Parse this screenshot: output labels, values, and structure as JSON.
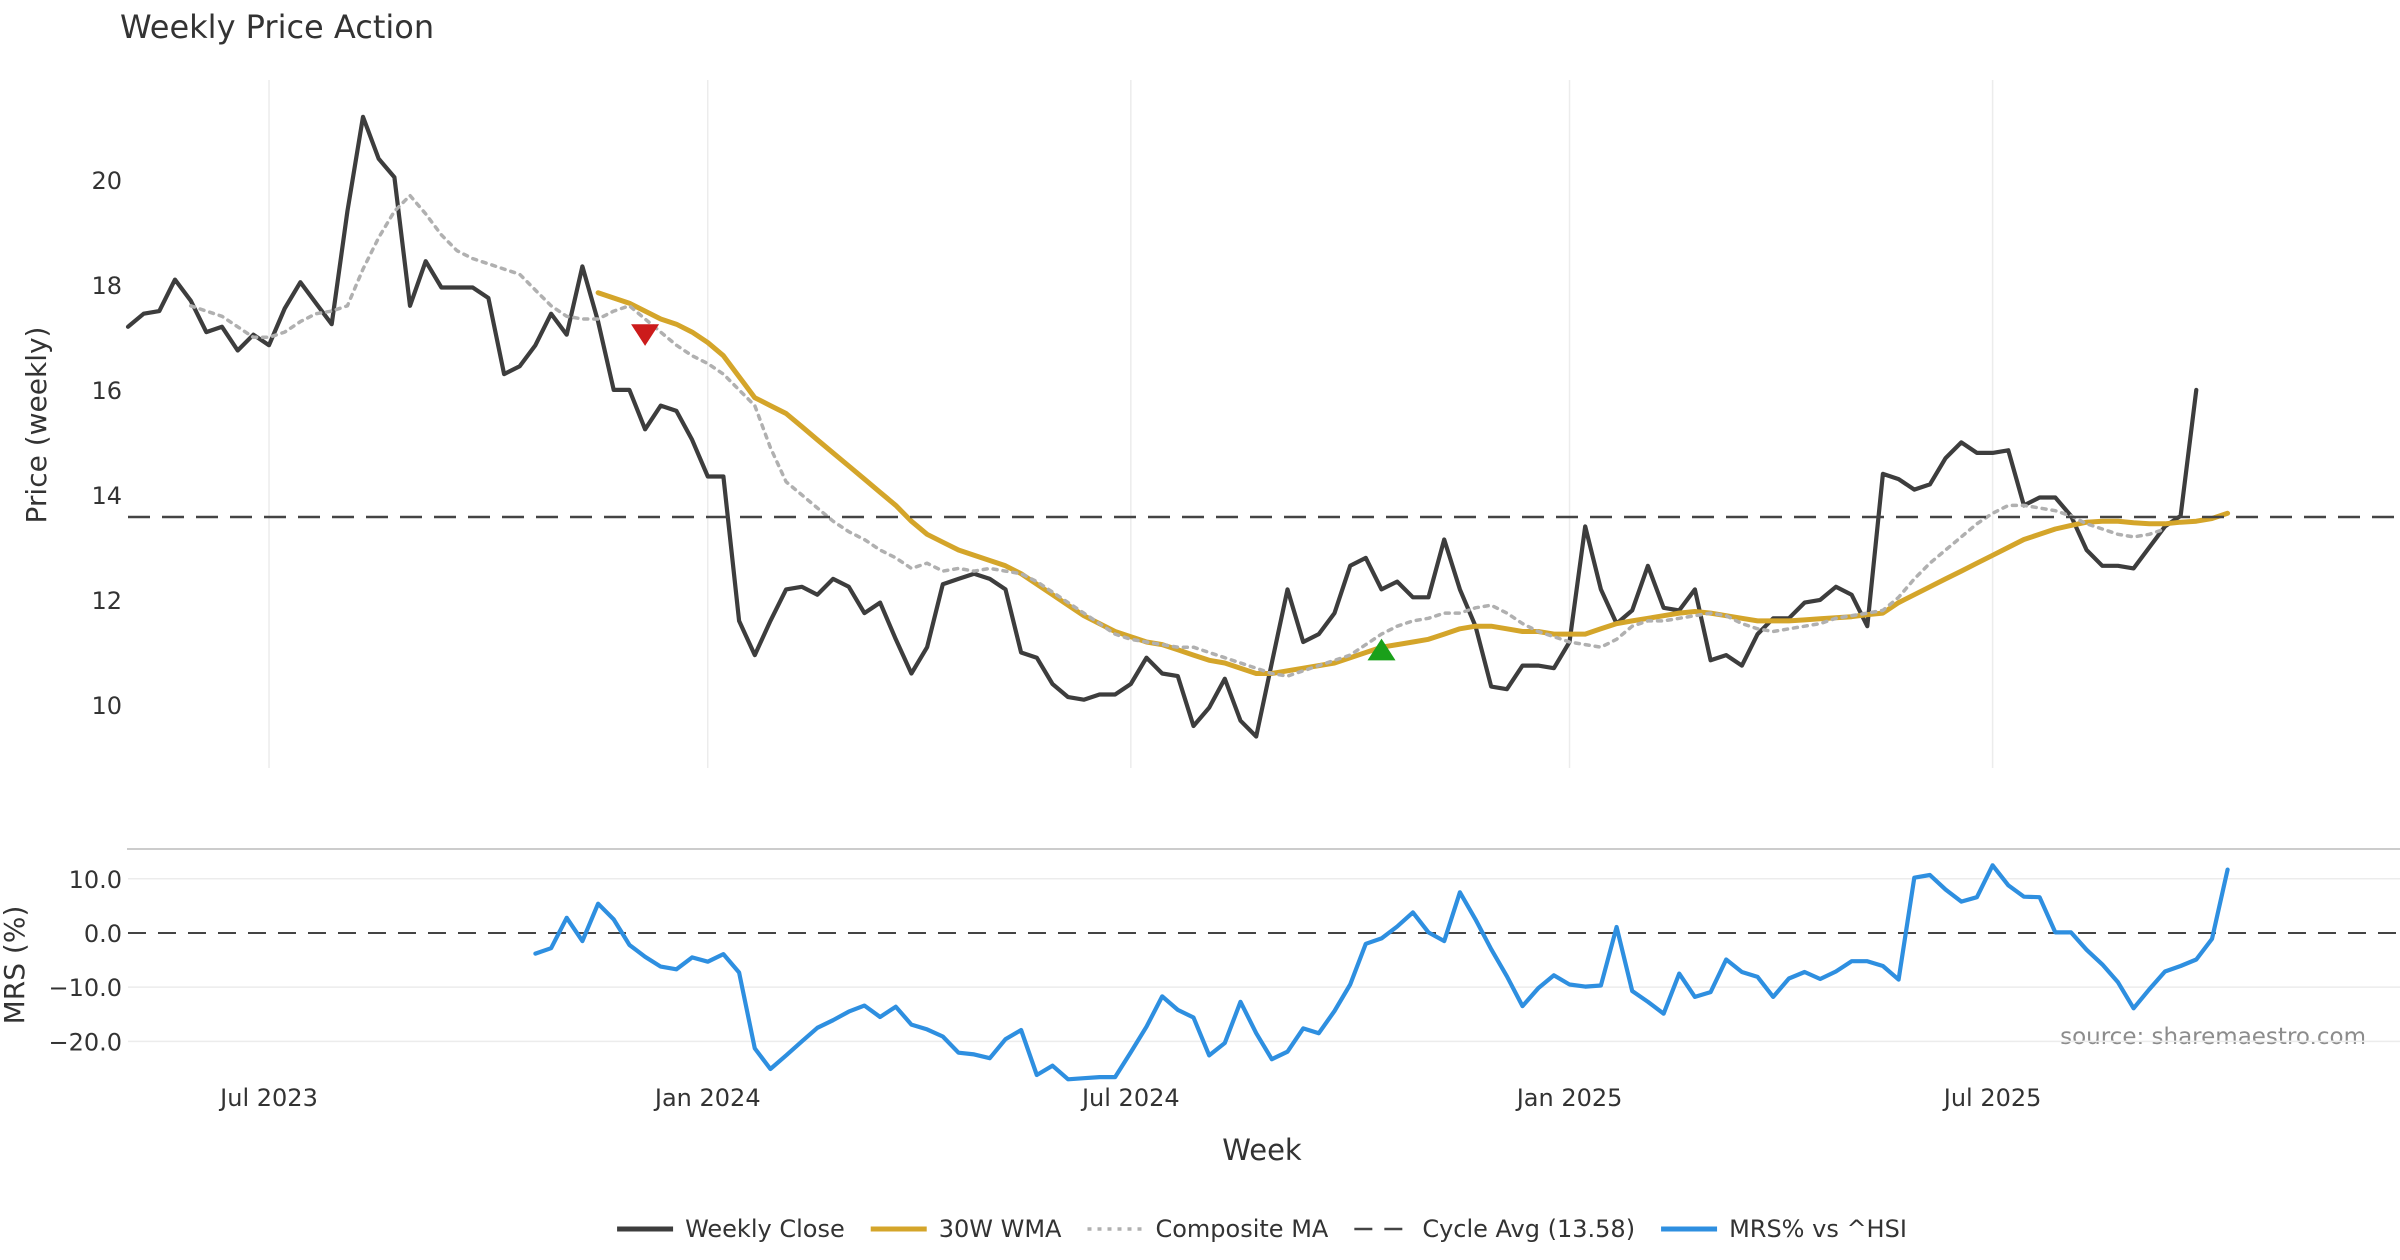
{
  "chart_data": [
    {
      "type": "line",
      "panel": "price",
      "title": "Weekly Price Action",
      "ylabel": "Price (weekly)",
      "ylim": [
        8.8,
        21.9
      ],
      "yticks": [
        10,
        12,
        14,
        16,
        18,
        20
      ],
      "ytick_labels": [
        "10",
        "12",
        "14",
        "16",
        "18",
        "20"
      ],
      "week_range": [
        0,
        145
      ],
      "grid_weeks": [
        9,
        37,
        64,
        92,
        119
      ],
      "series": [
        {
          "name": "Weekly Close",
          "color": "#3d3d3d",
          "start_week": 0,
          "values": [
            17.2,
            17.45,
            17.5,
            18.1,
            17.7,
            17.1,
            17.2,
            16.75,
            17.05,
            16.85,
            17.55,
            18.05,
            17.65,
            17.25,
            19.4,
            21.2,
            20.4,
            20.05,
            17.6,
            18.45,
            17.95,
            17.95,
            17.95,
            17.75,
            16.3,
            16.45,
            16.85,
            17.45,
            17.05,
            18.35,
            17.3,
            16.0,
            16.0,
            15.25,
            15.7,
            15.6,
            15.05,
            14.35,
            14.35,
            11.6,
            10.95,
            11.6,
            12.2,
            12.25,
            12.1,
            12.4,
            12.25,
            11.75,
            11.95,
            11.25,
            10.6,
            11.1,
            12.3,
            12.4,
            12.5,
            12.4,
            12.2,
            11.0,
            10.9,
            10.4,
            10.15,
            10.1,
            10.2,
            10.2,
            10.4,
            10.9,
            10.6,
            10.55,
            9.6,
            9.95,
            10.5,
            9.7,
            9.4,
            10.8,
            12.2,
            11.2,
            11.35,
            11.75,
            12.65,
            12.8,
            12.2,
            12.35,
            12.05,
            12.05,
            13.15,
            12.2,
            11.5,
            10.35,
            10.3,
            10.75,
            10.75,
            10.7,
            11.2,
            13.4,
            12.2,
            11.55,
            11.8,
            12.65,
            11.85,
            11.8,
            12.2,
            10.85,
            10.95,
            10.75,
            11.35,
            11.65,
            11.65,
            11.95,
            12.0,
            12.25,
            12.1,
            11.5,
            14.4,
            14.3,
            14.1,
            14.2,
            14.7,
            15.0,
            14.8,
            14.8,
            14.85,
            13.8,
            13.95,
            13.95,
            13.6,
            12.95,
            12.65,
            12.65,
            12.6,
            13.0,
            13.4,
            13.6,
            16.0
          ]
        },
        {
          "name": "30W WMA",
          "color": "#d4a52a",
          "start_week": 30,
          "values": [
            17.85,
            17.75,
            17.65,
            17.5,
            17.35,
            17.25,
            17.1,
            16.9,
            16.65,
            16.25,
            15.85,
            15.7,
            15.55,
            15.3,
            15.05,
            14.8,
            14.55,
            14.3,
            14.05,
            13.8,
            13.5,
            13.25,
            13.1,
            12.95,
            12.85,
            12.75,
            12.65,
            12.5,
            12.3,
            12.1,
            11.9,
            11.7,
            11.55,
            11.4,
            11.3,
            11.2,
            11.15,
            11.05,
            10.95,
            10.85,
            10.8,
            10.7,
            10.6,
            10.6,
            10.65,
            10.7,
            10.75,
            10.8,
            10.9,
            11.0,
            11.1,
            11.15,
            11.2,
            11.25,
            11.35,
            11.45,
            11.5,
            11.5,
            11.45,
            11.4,
            11.4,
            11.35,
            11.35,
            11.35,
            11.45,
            11.55,
            11.6,
            11.65,
            11.7,
            11.75,
            11.78,
            11.75,
            11.7,
            11.65,
            11.6,
            11.6,
            11.6,
            11.62,
            11.64,
            11.66,
            11.68,
            11.72,
            11.75,
            11.95,
            12.1,
            12.25,
            12.4,
            12.55,
            12.7,
            12.85,
            13.0,
            13.15,
            13.25,
            13.35,
            13.42,
            13.48,
            13.5,
            13.5,
            13.47,
            13.45,
            13.45,
            13.48,
            13.5,
            13.55,
            13.65
          ]
        },
        {
          "name": "Composite MA",
          "color": "#b0b0b0",
          "start_week": 4,
          "values": [
            17.6,
            17.5,
            17.4,
            17.2,
            17.0,
            17.0,
            17.1,
            17.3,
            17.45,
            17.5,
            17.6,
            18.3,
            18.9,
            19.4,
            19.7,
            19.35,
            18.95,
            18.65,
            18.5,
            18.4,
            18.3,
            18.2,
            17.9,
            17.6,
            17.4,
            17.35,
            17.35,
            17.5,
            17.6,
            17.35,
            17.1,
            16.85,
            16.65,
            16.5,
            16.3,
            16.0,
            15.7,
            14.9,
            14.25,
            14.0,
            13.75,
            13.5,
            13.3,
            13.15,
            12.95,
            12.8,
            12.6,
            12.7,
            12.55,
            12.6,
            12.55,
            12.6,
            12.55,
            12.5,
            12.35,
            12.15,
            11.95,
            11.75,
            11.55,
            11.35,
            11.25,
            11.2,
            11.15,
            11.1,
            11.1,
            11.0,
            10.9,
            10.8,
            10.7,
            10.6,
            10.55,
            10.65,
            10.75,
            10.85,
            10.95,
            11.15,
            11.35,
            11.5,
            11.6,
            11.65,
            11.75,
            11.75,
            11.85,
            11.9,
            11.75,
            11.55,
            11.4,
            11.3,
            11.2,
            11.15,
            11.1,
            11.25,
            11.5,
            11.6,
            11.6,
            11.65,
            11.7,
            11.75,
            11.7,
            11.55,
            11.45,
            11.4,
            11.45,
            11.5,
            11.55,
            11.65,
            11.7,
            11.75,
            11.8,
            12.05,
            12.4,
            12.7,
            12.95,
            13.2,
            13.45,
            13.65,
            13.8,
            13.8,
            13.75,
            13.7,
            13.6,
            13.45,
            13.35,
            13.25,
            13.2,
            13.25,
            13.35
          ]
        },
        {
          "name": "Cycle Avg (13.58)",
          "color": "#444444",
          "style": "dashed",
          "value": 13.58
        }
      ],
      "markers": [
        {
          "name": "sell-signal",
          "type": "down-triangle",
          "week": 33,
          "value": 17.05,
          "color": "#cc1b1b"
        },
        {
          "name": "buy-signal",
          "type": "up-triangle",
          "week": 80,
          "value": 11.05,
          "color": "#1aa01a"
        }
      ]
    },
    {
      "type": "line",
      "panel": "mrs",
      "ylabel": "MRS (%)",
      "xlabel": "Week",
      "ylim": [
        -27.5,
        15.5
      ],
      "yticks": [
        10,
        0,
        -10,
        -20
      ],
      "ytick_labels": [
        "10.0",
        "0.0",
        "−10.0",
        "−20.0"
      ],
      "reference_line": 0,
      "x_tick_weeks": [
        9,
        37,
        64,
        92,
        119
      ],
      "x_tick_labels": [
        "Jul 2023",
        "Jan 2024",
        "Jul 2024",
        "Jan 2025",
        "Jul 2025"
      ],
      "annotation": "source: sharemaestro.com",
      "series": [
        {
          "name": "MRS% vs ^HSI",
          "color": "#2e8fe0",
          "start_week": 26,
          "values": [
            -3.8,
            -2.8,
            2.8,
            -1.5,
            5.4,
            2.5,
            -2.2,
            -4.4,
            -6.2,
            -6.7,
            -4.5,
            -5.3,
            -3.9,
            -7.3,
            -21.3,
            -25.1,
            -22.6,
            -20.0,
            -17.5,
            -16.1,
            -14.5,
            -13.4,
            -15.5,
            -13.6,
            -16.9,
            -17.8,
            -19.1,
            -22.1,
            -22.4,
            -23.1,
            -19.6,
            -17.9,
            -26.2,
            -24.5,
            -27.0,
            -26.8,
            -26.6,
            -26.6,
            -22.0,
            -17.3,
            -11.7,
            -14.2,
            -15.6,
            -22.6,
            -20.3,
            -12.7,
            -18.5,
            -23.3,
            -21.9,
            -17.6,
            -18.5,
            -14.4,
            -9.5,
            -2.0,
            -1.0,
            1.2,
            3.8,
            0.1,
            -1.5,
            7.5,
            2.5,
            -3.0,
            -8.0,
            -13.5,
            -10.2,
            -7.8,
            -9.5,
            -9.9,
            -9.7,
            1.1,
            -10.7,
            -12.7,
            -14.9,
            -7.5,
            -11.8,
            -10.9,
            -4.9,
            -7.2,
            -8.1,
            -11.8,
            -8.4,
            -7.2,
            -8.5,
            -7.1,
            -5.2,
            -5.2,
            -6.1,
            -8.6,
            10.2,
            10.7,
            8.0,
            5.8,
            6.6,
            12.5,
            8.8,
            6.7,
            6.6,
            0.1,
            0.1,
            -3.1,
            -5.8,
            -9.1,
            -13.9,
            -10.4,
            -7.1,
            -6.1,
            -4.9,
            -1.1,
            11.7
          ]
        }
      ]
    }
  ],
  "legend": [
    {
      "label": "Weekly Close",
      "color": "#3d3d3d",
      "style": "solid"
    },
    {
      "label": "30W WMA",
      "color": "#d4a52a",
      "style": "solid"
    },
    {
      "label": "Composite MA",
      "color": "#b0b0b0",
      "style": "dotted"
    },
    {
      "label": "Cycle Avg (13.58)",
      "color": "#444444",
      "style": "dashed"
    },
    {
      "label": "MRS% vs ^HSI",
      "color": "#2e8fe0",
      "style": "solid"
    }
  ]
}
